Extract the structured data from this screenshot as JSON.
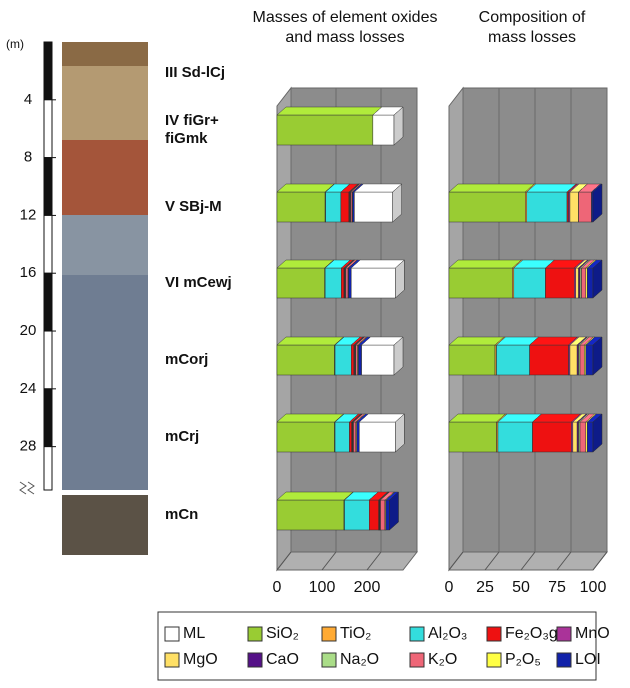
{
  "depth_scale": {
    "label": "(m)",
    "ylim": [
      0,
      31
    ],
    "yticks": [
      4,
      8,
      12,
      16,
      20,
      24,
      28
    ]
  },
  "chart_data": [
    {
      "type": "bar",
      "title": "Masses of element oxides and mass losses",
      "categories": [
        "III Sd-lCj",
        "IV fiGr+ fiGmk",
        "V SBj-M",
        "VI mCewj",
        "mCorj",
        "mCrj",
        "mCn"
      ],
      "xlim": [
        0,
        280
      ],
      "xticks": [
        0,
        100,
        200
      ],
      "series": [
        {
          "name": "ML",
          "color": "#ffffff",
          "values": [
            null,
            47,
            85,
            98,
            72,
            80,
            null
          ]
        },
        {
          "name": "SiO₂",
          "color": "#99cc33",
          "values": [
            null,
            213,
            107,
            106,
            128,
            128,
            149
          ]
        },
        {
          "name": "TiO₂",
          "color": "#ffaa33",
          "values": [
            null,
            null,
            1,
            1,
            1,
            1,
            1
          ]
        },
        {
          "name": "Al₂O₃",
          "color": "#33dddd",
          "values": [
            null,
            null,
            34,
            36,
            36,
            32,
            55
          ]
        },
        {
          "name": "Fe₂O₃g",
          "color": "#ee1111",
          "values": [
            null,
            null,
            18,
            6,
            6,
            5,
            21
          ]
        },
        {
          "name": "MnO",
          "color": "#aa3399",
          "values": [
            null,
            null,
            1,
            1,
            1,
            1,
            1
          ]
        },
        {
          "name": "MgO",
          "color": "#ffe066",
          "values": [
            null,
            null,
            1,
            1,
            1,
            1,
            1
          ]
        },
        {
          "name": "CaO",
          "color": "#551188",
          "values": [
            null,
            null,
            1,
            1,
            1,
            1,
            1
          ]
        },
        {
          "name": "Na₂O",
          "color": "#aadd88",
          "values": [
            null,
            null,
            1,
            1,
            1,
            1,
            1
          ]
        },
        {
          "name": "K₂O",
          "color": "#ee6677",
          "values": [
            null,
            null,
            3,
            5,
            4,
            5,
            10
          ]
        },
        {
          "name": "P₂O₅",
          "color": "#ffff44",
          "values": [
            null,
            null,
            1,
            1,
            2,
            2,
            2
          ]
        },
        {
          "name": "LOI",
          "color": "#1122aa",
          "values": [
            null,
            null,
            4,
            6,
            7,
            6,
            8
          ]
        }
      ]
    },
    {
      "type": "bar",
      "title": "Composition of mass losses",
      "xlim": [
        0,
        100
      ],
      "xticks": [
        0,
        25,
        50,
        75,
        100
      ],
      "series": [
        {
          "values": [
            null,
            null,
            null,
            null,
            null,
            null,
            null
          ]
        },
        {
          "values": [
            null,
            null,
            53,
            44,
            32,
            33,
            null
          ]
        },
        {
          "values": [
            null,
            null,
            1,
            1,
            1,
            1,
            null
          ]
        },
        {
          "values": [
            null,
            null,
            28,
            22,
            23,
            24,
            null
          ]
        },
        {
          "values": [
            null,
            null,
            1,
            20,
            27,
            27,
            null
          ]
        },
        {
          "values": [
            null,
            null,
            1,
            1,
            1,
            1,
            null
          ]
        },
        {
          "values": [
            null,
            null,
            6,
            2,
            5,
            3,
            null
          ]
        },
        {
          "values": [
            null,
            null,
            0,
            1,
            1,
            1,
            null
          ]
        },
        {
          "values": [
            null,
            null,
            0,
            1,
            1,
            1,
            null
          ]
        },
        {
          "values": [
            null,
            null,
            9,
            3,
            3,
            4,
            null
          ]
        },
        {
          "values": [
            null,
            null,
            0,
            1,
            1,
            1,
            null
          ]
        },
        {
          "values": [
            null,
            null,
            1,
            4,
            5,
            4,
            null
          ]
        }
      ]
    }
  ]
}
